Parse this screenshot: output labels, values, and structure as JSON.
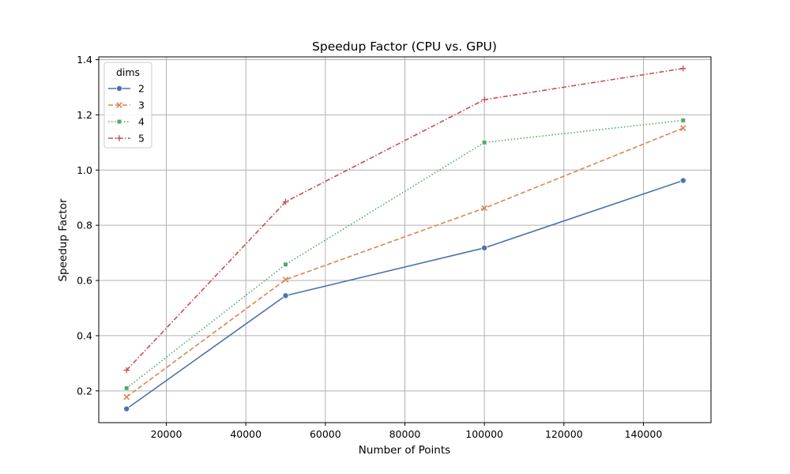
{
  "chart_data": {
    "type": "line",
    "title": "Speedup Factor (CPU vs. GPU)",
    "xlabel": "Number of Points",
    "ylabel": "Speedup Factor",
    "x": [
      10000,
      50000,
      100000,
      150000
    ],
    "xlim": [
      3000,
      157000
    ],
    "ylim": [
      0.085,
      1.41
    ],
    "xticks": [
      20000,
      40000,
      60000,
      80000,
      100000,
      120000,
      140000
    ],
    "yticks": [
      0.2,
      0.4,
      0.6,
      0.8,
      1.0,
      1.2,
      1.4
    ],
    "grid": true,
    "legend": {
      "title": "dims",
      "position": "top-left"
    },
    "series": [
      {
        "name": "2",
        "values": [
          0.135,
          0.545,
          0.718,
          0.962
        ],
        "color": "#4c72b0",
        "dash": "solid",
        "marker": "circle"
      },
      {
        "name": "3",
        "values": [
          0.178,
          0.603,
          0.862,
          1.152
        ],
        "color": "#dd8452",
        "dash": "dashed",
        "marker": "x"
      },
      {
        "name": "4",
        "values": [
          0.21,
          0.658,
          1.1,
          1.18
        ],
        "color": "#55a868",
        "dash": "dotted",
        "marker": "square"
      },
      {
        "name": "5",
        "values": [
          0.275,
          0.885,
          1.255,
          1.368
        ],
        "color": "#c44e52",
        "dash": "dashdot",
        "marker": "plus"
      }
    ]
  }
}
